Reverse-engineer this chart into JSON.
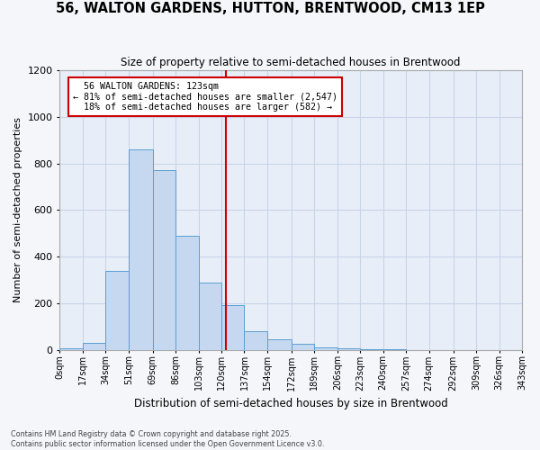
{
  "title": "56, WALTON GARDENS, HUTTON, BRENTWOOD, CM13 1EP",
  "subtitle": "Size of property relative to semi-detached houses in Brentwood",
  "xlabel": "Distribution of semi-detached houses by size in Brentwood",
  "ylabel": "Number of semi-detached properties",
  "property_size": 123,
  "property_label": "56 WALTON GARDENS: 123sqm",
  "pct_smaller": 81,
  "count_smaller": 2547,
  "pct_larger": 18,
  "count_larger": 582,
  "bin_edges": [
    0,
    17,
    34,
    51,
    69,
    86,
    103,
    120,
    137,
    154,
    172,
    189,
    206,
    223,
    240,
    257,
    274,
    292,
    309,
    326,
    343
  ],
  "bin_labels": [
    "0sqm",
    "17sqm",
    "34sqm",
    "51sqm",
    "69sqm",
    "86sqm",
    "103sqm",
    "120sqm",
    "137sqm",
    "154sqm",
    "172sqm",
    "189sqm",
    "206sqm",
    "223sqm",
    "240sqm",
    "257sqm",
    "274sqm",
    "292sqm",
    "309sqm",
    "326sqm",
    "343sqm"
  ],
  "bar_heights": [
    5,
    30,
    340,
    860,
    770,
    490,
    290,
    190,
    80,
    45,
    25,
    10,
    5,
    2,
    1,
    0,
    0,
    0,
    0,
    0
  ],
  "bar_color": "#c5d8f0",
  "bar_edge_color": "#5a9fd4",
  "vline_x": 123,
  "vline_color": "#cc0000",
  "annotation_box_color": "#cc0000",
  "ylim": [
    0,
    1200
  ],
  "yticks": [
    0,
    200,
    400,
    600,
    800,
    1000,
    1200
  ],
  "grid_color": "#c8d4e8",
  "background_color": "#e8eef8",
  "fig_background": "#f4f6fa",
  "footer_line1": "Contains HM Land Registry data © Crown copyright and database right 2025.",
  "footer_line2": "Contains public sector information licensed under the Open Government Licence v3.0."
}
